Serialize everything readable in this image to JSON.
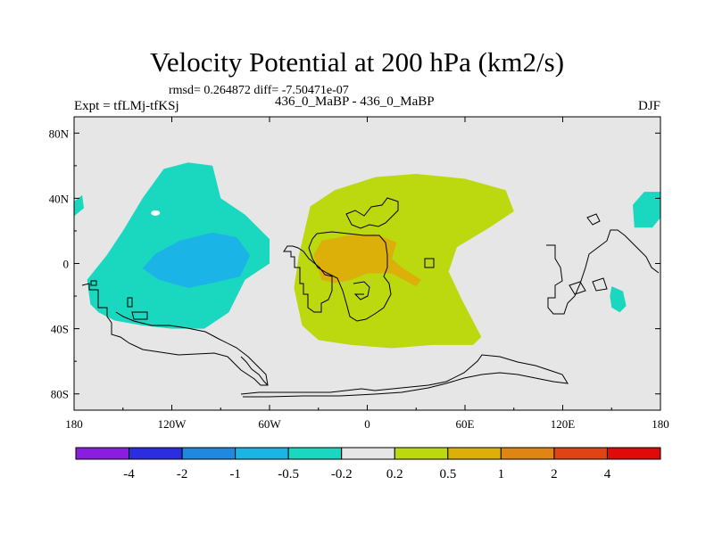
{
  "chart_data": {
    "type": "contour-map",
    "title": "Velocity Potential at 200 hPa (km2/s)",
    "stats_text": "rmsd= 0.264872 diff= -7.50471e-07",
    "left_label": "Expt = tfLMj-tfKSj",
    "center_label": "436_0_MaBP - 436_0_MaBP",
    "right_label": "DJF",
    "x_ticks": [
      "180",
      "120W",
      "60W",
      "0",
      "60E",
      "120E",
      "180"
    ],
    "x_tick_values": [
      -180,
      -120,
      -60,
      0,
      60,
      120,
      180
    ],
    "y_ticks": [
      "80N",
      "40N",
      "0",
      "40S",
      "80S"
    ],
    "y_tick_values": [
      80,
      40,
      0,
      -40,
      -80
    ],
    "xlim": [
      -180,
      180
    ],
    "ylim": [
      -90,
      90
    ],
    "levels": [
      "-4",
      "-2",
      "-1",
      "-0.5",
      "-0.2",
      "0.2",
      "0.5",
      "1",
      "2",
      "4"
    ],
    "colorbar_colors": [
      "#8a1ee0",
      "#2c2ce0",
      "#1f88e0",
      "#1ab4e6",
      "#19d8bf",
      "#e6e6e6",
      "#bcd80f",
      "#dcaf09",
      "#e08514",
      "#e04412",
      "#e00a0a"
    ],
    "background_color": "#e6e6e6",
    "regions": [
      {
        "name": "negative-anomaly-pacific",
        "level": "-0.2",
        "color": "#19d8bf",
        "polygon": [
          [
            -170,
            -25
          ],
          [
            -172,
            -10
          ],
          [
            -160,
            5
          ],
          [
            -150,
            20
          ],
          [
            -138,
            40
          ],
          [
            -125,
            58
          ],
          [
            -110,
            62
          ],
          [
            -95,
            60
          ],
          [
            -90,
            40
          ],
          [
            -75,
            30
          ],
          [
            -60,
            15
          ],
          [
            -60,
            0
          ],
          [
            -75,
            -10
          ],
          [
            -85,
            -30
          ],
          [
            -100,
            -40
          ],
          [
            -120,
            -40
          ],
          [
            -138,
            -38
          ],
          [
            -155,
            -35
          ],
          [
            -165,
            -30
          ]
        ]
      },
      {
        "name": "negative-core-pacific",
        "level": "-0.5",
        "color": "#1ab4e6",
        "polygon": [
          [
            -138,
            -3
          ],
          [
            -130,
            6
          ],
          [
            -115,
            14
          ],
          [
            -95,
            19
          ],
          [
            -80,
            16
          ],
          [
            -72,
            5
          ],
          [
            -78,
            -8
          ],
          [
            -95,
            -12
          ],
          [
            -110,
            -15
          ],
          [
            -128,
            -10
          ]
        ]
      },
      {
        "name": "negative-patch-east-pacific",
        "level": "-0.2",
        "color": "#19d8bf",
        "polygon": [
          [
            -180,
            38
          ],
          [
            -175,
            42
          ],
          [
            -174,
            34
          ],
          [
            -180,
            29
          ]
        ]
      },
      {
        "name": "negative-patch-west-pacific",
        "level": "-0.2",
        "color": "#19d8bf",
        "polygon": [
          [
            180,
            44
          ],
          [
            170,
            44
          ],
          [
            163,
            36
          ],
          [
            164,
            22
          ],
          [
            175,
            22
          ],
          [
            180,
            28
          ]
        ]
      },
      {
        "name": "negative-patch-south-pacific",
        "level": "-0.2",
        "color": "#19d8bf",
        "polygon": [
          [
            150,
            -14
          ],
          [
            157,
            -17
          ],
          [
            159,
            -26
          ],
          [
            155,
            -30
          ],
          [
            150,
            -27
          ],
          [
            149,
            -20
          ]
        ]
      },
      {
        "name": "positive-anomaly-atlantic-africa",
        "level": "0.2",
        "color": "#bcd80f",
        "polygon": [
          [
            -35,
            35
          ],
          [
            -20,
            45
          ],
          [
            5,
            53
          ],
          [
            30,
            55
          ],
          [
            60,
            52
          ],
          [
            85,
            45
          ],
          [
            90,
            32
          ],
          [
            75,
            22
          ],
          [
            55,
            10
          ],
          [
            50,
            -5
          ],
          [
            58,
            -22
          ],
          [
            70,
            -45
          ],
          [
            65,
            -50
          ],
          [
            40,
            -50
          ],
          [
            15,
            -52
          ],
          [
            -10,
            -50
          ],
          [
            -30,
            -47
          ],
          [
            -40,
            -38
          ],
          [
            -45,
            -15
          ],
          [
            -42,
            5
          ]
        ]
      },
      {
        "name": "positive-core-africa",
        "level": "0.5",
        "color": "#dcaf09",
        "polygon": [
          [
            -33,
            5
          ],
          [
            -28,
            -10
          ],
          [
            -20,
            -12
          ],
          [
            -10,
            -10
          ],
          [
            0,
            -6
          ],
          [
            15,
            -6
          ],
          [
            30,
            -14
          ],
          [
            33,
            -10
          ],
          [
            22,
            -3
          ],
          [
            15,
            3
          ],
          [
            18,
            13
          ],
          [
            5,
            18
          ],
          [
            -12,
            17
          ],
          [
            -28,
            14
          ]
        ]
      }
    ]
  }
}
